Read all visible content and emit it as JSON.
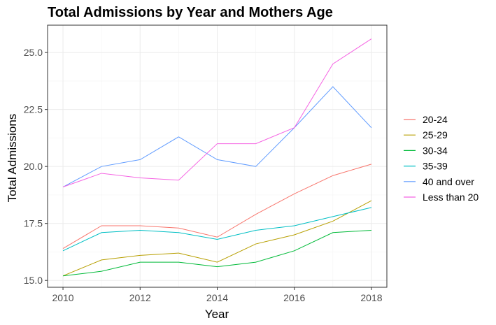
{
  "chart_data": {
    "type": "line",
    "title": "Total Admissions by Year and Mothers Age",
    "xlabel": "Year",
    "ylabel": "Total Admissions",
    "xlim": [
      2010,
      2018
    ],
    "ylim": [
      15.0,
      26.0
    ],
    "x_ticks": [
      2010,
      2012,
      2014,
      2016,
      2018
    ],
    "y_ticks": [
      15.0,
      17.5,
      20.0,
      22.5,
      25.0
    ],
    "y_tick_labels": [
      "15.0",
      "17.5",
      "20.0",
      "22.5",
      "25.0"
    ],
    "grid": true,
    "legend_position": "right",
    "x": [
      2010,
      2011,
      2012,
      2013,
      2014,
      2015,
      2016,
      2017,
      2018
    ],
    "series": [
      {
        "name": "20-24",
        "color": "#F8766D",
        "values": [
          16.4,
          17.4,
          17.4,
          17.3,
          16.9,
          17.9,
          18.8,
          19.6,
          20.1
        ]
      },
      {
        "name": "25-29",
        "color": "#B79F00",
        "values": [
          15.2,
          15.9,
          16.1,
          16.2,
          15.8,
          16.6,
          17.0,
          17.6,
          18.5
        ]
      },
      {
        "name": "30-34",
        "color": "#00BA38",
        "values": [
          15.2,
          15.4,
          15.8,
          15.8,
          15.6,
          15.8,
          16.3,
          17.1,
          17.2
        ]
      },
      {
        "name": "35-39",
        "color": "#00BFC4",
        "values": [
          16.3,
          17.1,
          17.2,
          17.1,
          16.8,
          17.2,
          17.4,
          17.8,
          18.2
        ]
      },
      {
        "name": "40 and over",
        "color": "#619CFF",
        "values": [
          19.1,
          20.0,
          20.3,
          21.3,
          20.3,
          20.0,
          21.7,
          23.5,
          21.7
        ]
      },
      {
        "name": "Less than 20",
        "color": "#F564E3",
        "values": [
          19.1,
          19.7,
          19.5,
          19.4,
          21.0,
          21.0,
          21.7,
          24.5,
          25.6
        ]
      }
    ]
  }
}
